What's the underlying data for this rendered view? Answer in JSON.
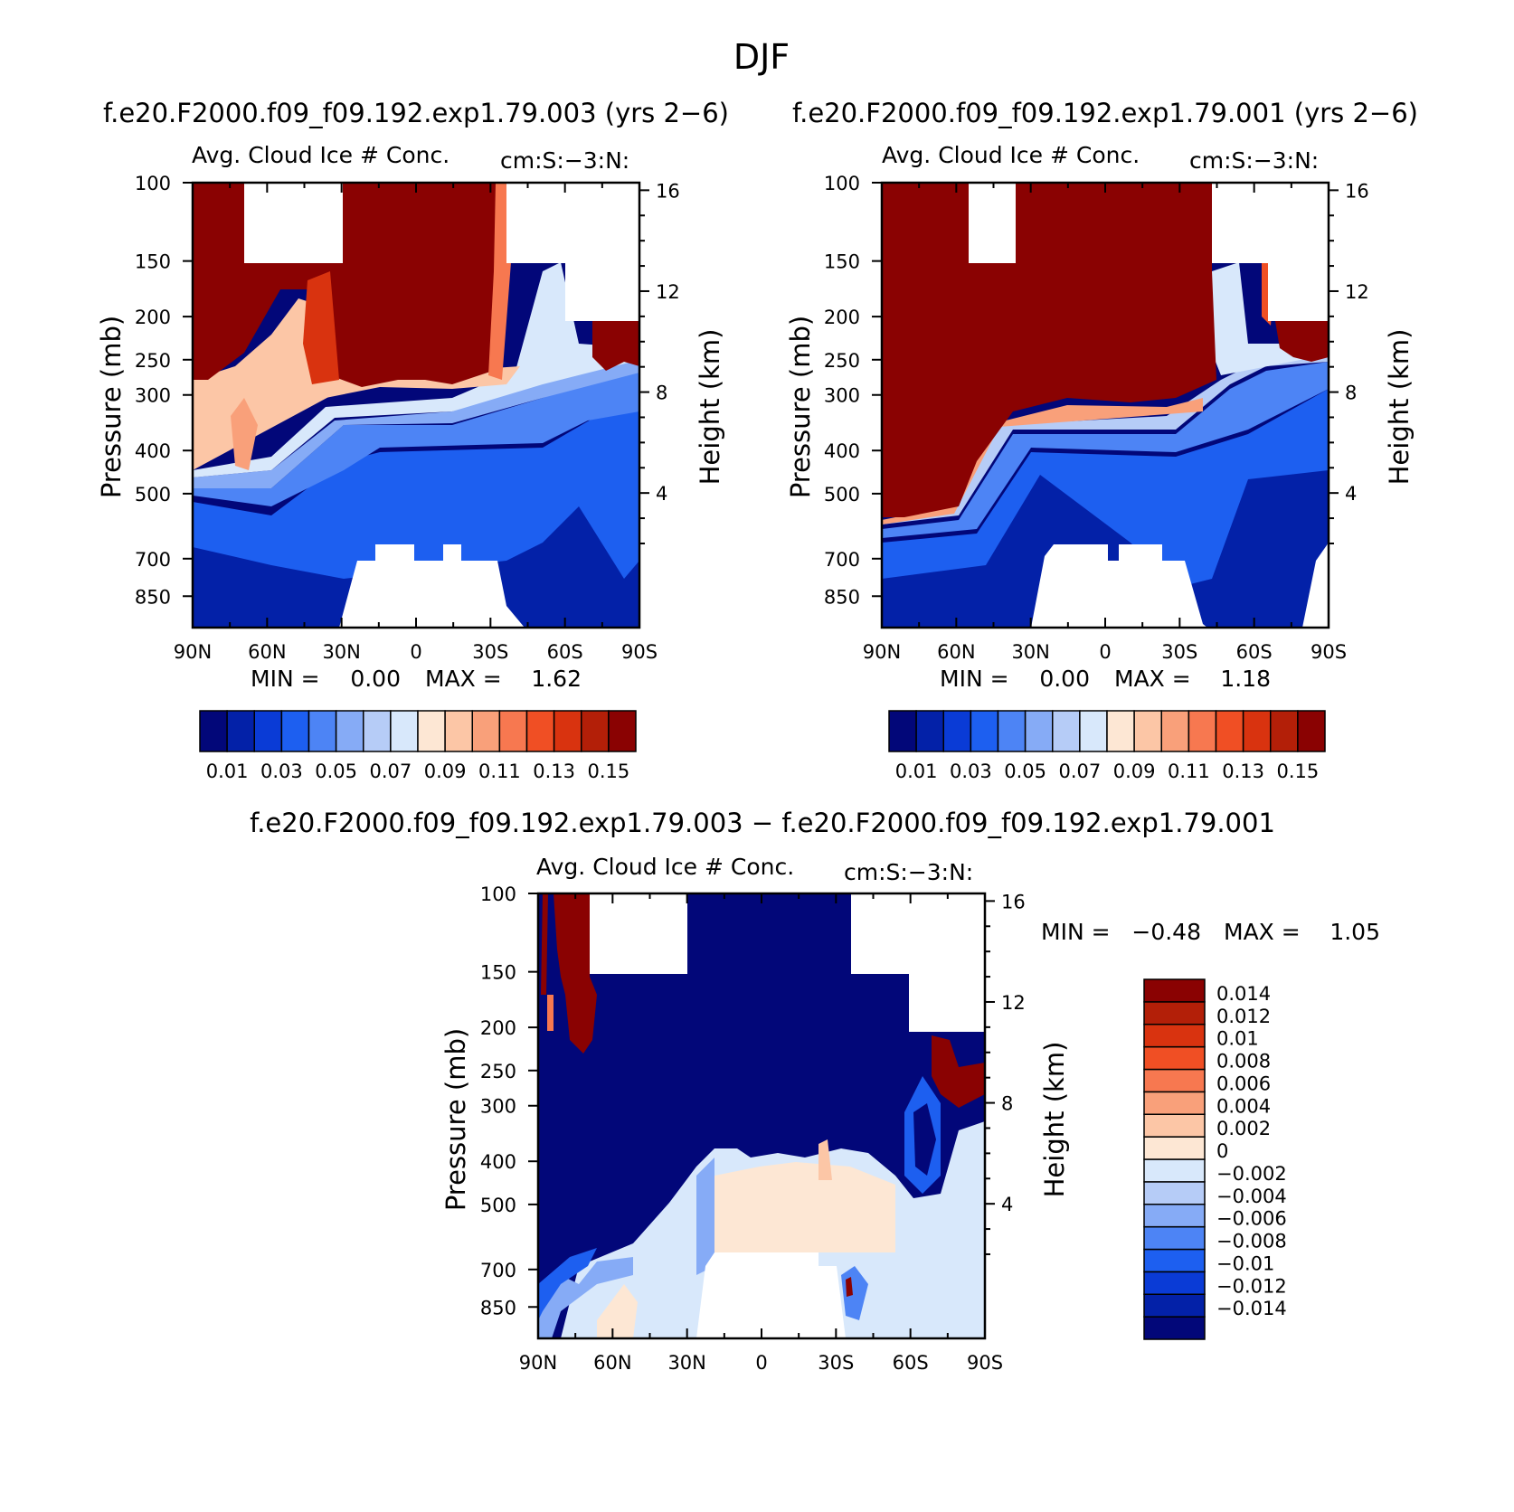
{
  "figure_title": "DJF",
  "colors": {
    "scale_abs": [
      "#020779",
      "#0321a8",
      "#0a3bd6",
      "#1d5ff0",
      "#4d84f5",
      "#86abf6",
      "#b6ccf7",
      "#d8e8fb",
      "#fde7d4",
      "#fcc6a6",
      "#f9a07a",
      "#f77850",
      "#f04f24",
      "#d9330f",
      "#b31f08",
      "#8a0202"
    ],
    "scale_diff": [
      "#020779",
      "#0321a8",
      "#0a3bd6",
      "#1d5ff0",
      "#4d84f5",
      "#86abf6",
      "#b6ccf7",
      "#d8e8fb",
      "#fde7d4",
      "#fcc6a6",
      "#f9a07a",
      "#f77850",
      "#f04f24",
      "#d9330f",
      "#b31f08",
      "#8a0202"
    ]
  },
  "chart_data": [
    {
      "id": "panel-exp003",
      "type": "heatmap",
      "case_title": "f.e20.F2000.f09_f09.192.exp1.79.003 (yrs 2−6)",
      "title": "Avg. Cloud Ice # Conc.",
      "units": "cm:S:−3:N:",
      "xlabel": "",
      "ylabel": "Pressure (mb)",
      "ylabel_right": "Height (km)",
      "x_ticks": [
        "90N",
        "60N",
        "30N",
        "0",
        "30S",
        "60S",
        "90S"
      ],
      "y_ticks": [
        "100",
        "150",
        "200",
        "250",
        "300",
        "400",
        "500",
        "700",
        "850"
      ],
      "y_ticks_right": [
        "16",
        "12",
        "8",
        "4"
      ],
      "min_label": "MIN =",
      "min_value": "0.00",
      "max_label": "MAX =",
      "max_value": "1.62",
      "colorbar_labels": [
        "0.01",
        "0.03",
        "0.05",
        "0.07",
        "0.09",
        "0.11",
        "0.13",
        "0.15"
      ]
    },
    {
      "id": "panel-exp001",
      "type": "heatmap",
      "case_title": "f.e20.F2000.f09_f09.192.exp1.79.001 (yrs 2−6)",
      "title": "Avg. Cloud Ice # Conc.",
      "units": "cm:S:−3:N:",
      "xlabel": "",
      "ylabel": "Pressure (mb)",
      "ylabel_right": "Height (km)",
      "x_ticks": [
        "90N",
        "60N",
        "30N",
        "0",
        "30S",
        "60S",
        "90S"
      ],
      "y_ticks": [
        "100",
        "150",
        "200",
        "250",
        "300",
        "400",
        "500",
        "700",
        "850"
      ],
      "y_ticks_right": [
        "16",
        "12",
        "8",
        "4"
      ],
      "min_label": "MIN =",
      "min_value": "0.00",
      "max_label": "MAX =",
      "max_value": "1.18",
      "colorbar_labels": [
        "0.01",
        "0.03",
        "0.05",
        "0.07",
        "0.09",
        "0.11",
        "0.13",
        "0.15"
      ]
    },
    {
      "id": "panel-diff",
      "type": "heatmap",
      "case_title": "f.e20.F2000.f09_f09.192.exp1.79.003 − f.e20.F2000.f09_f09.192.exp1.79.001",
      "title": "Avg. Cloud Ice # Conc.",
      "units": "cm:S:−3:N:",
      "xlabel": "",
      "ylabel": "Pressure (mb)",
      "ylabel_right": "Height (km)",
      "x_ticks": [
        "90N",
        "60N",
        "30N",
        "0",
        "30S",
        "60S",
        "90S"
      ],
      "y_ticks": [
        "100",
        "150",
        "200",
        "250",
        "300",
        "400",
        "500",
        "700",
        "850"
      ],
      "y_ticks_right": [
        "16",
        "12",
        "8",
        "4"
      ],
      "min_label": "MIN =",
      "min_value": "−0.48",
      "max_label": "MAX =",
      "max_value": "1.05",
      "colorbar_labels": [
        "0.014",
        "0.012",
        "0.01",
        "0.008",
        "0.006",
        "0.004",
        "0.002",
        "0",
        "−0.002",
        "−0.004",
        "−0.006",
        "−0.008",
        "−0.01",
        "−0.012",
        "−0.014"
      ]
    }
  ]
}
